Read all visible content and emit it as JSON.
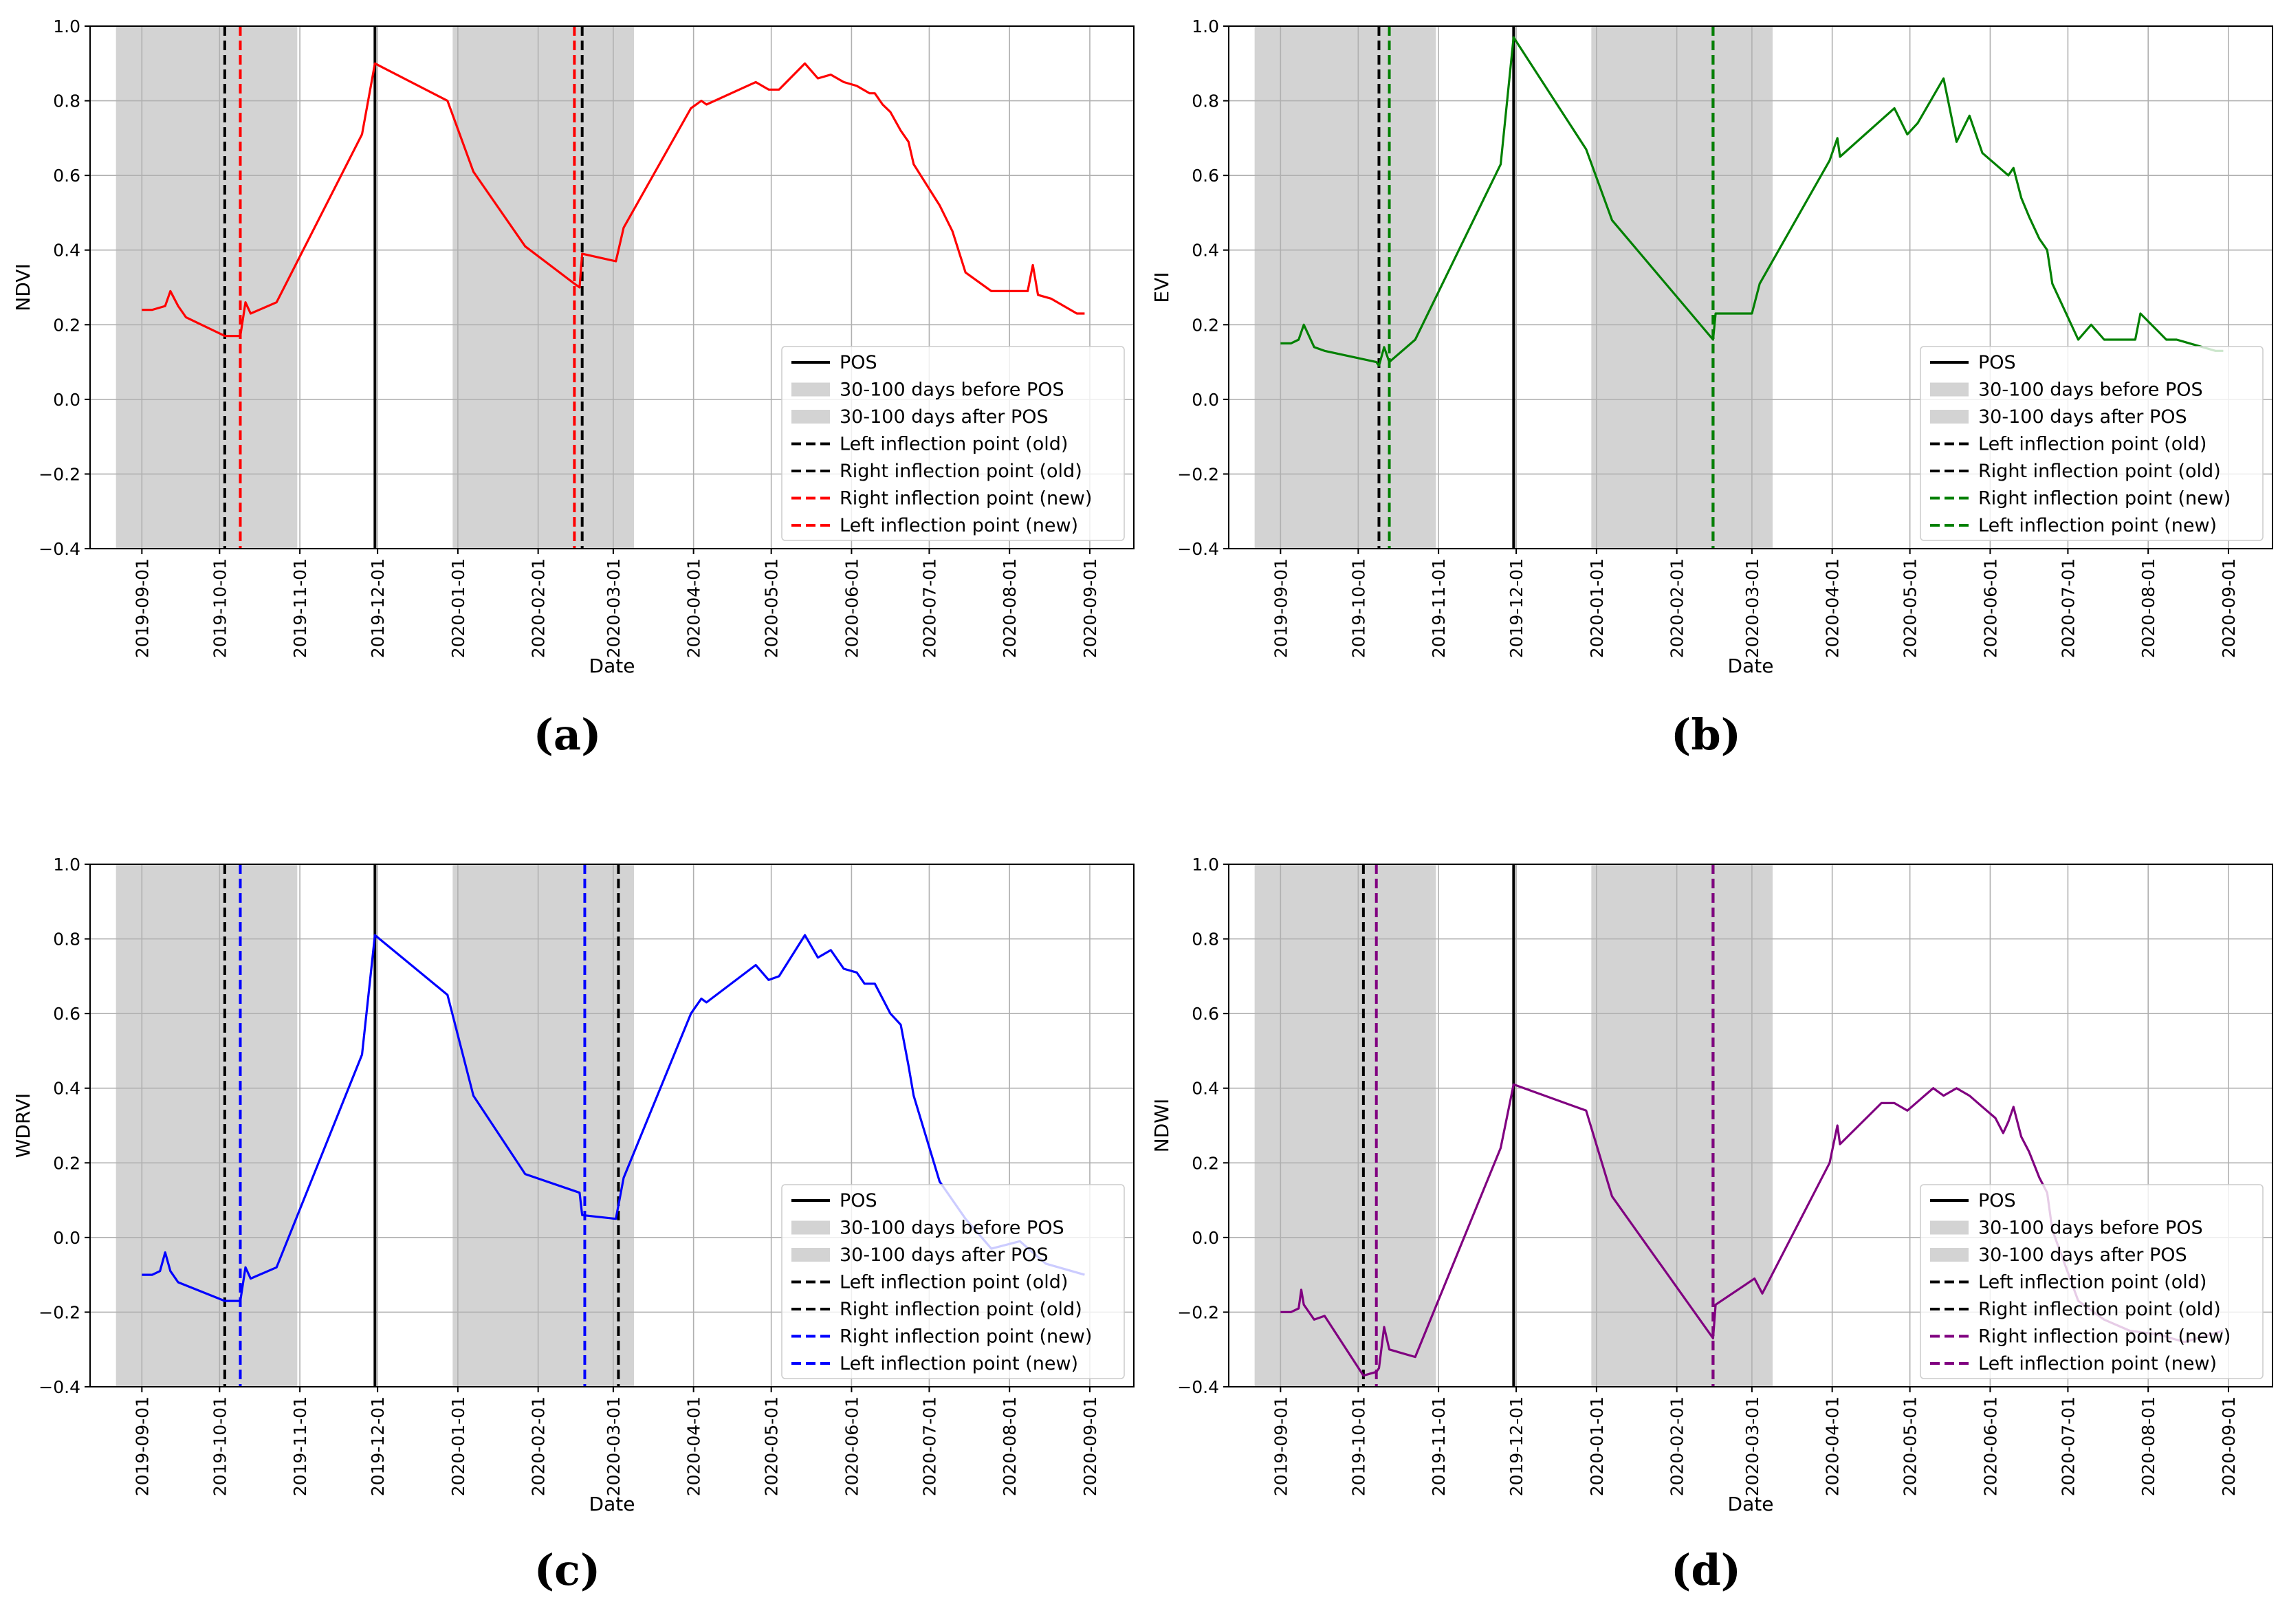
{
  "figure": {
    "xlabel": "Date"
  },
  "legend_labels": {
    "pos": "POS",
    "before": "30-100 days before POS",
    "after": "30-100 days after POS",
    "left_old": "Left inflection point (old)",
    "right_old": "Right inflection point (old)",
    "right_new": "Right inflection point (new)",
    "left_new": "Left inflection point (new)"
  },
  "chart_data": [
    {
      "type": "line",
      "caption": "(a)",
      "ylabel": "NDVI",
      "xlabel": "Date",
      "color": "#ff0000",
      "legend_position": "lower right",
      "x_ticks": [
        "2019-09-01",
        "2019-10-01",
        "2019-11-01",
        "2019-12-01",
        "2020-01-01",
        "2020-02-01",
        "2020-03-01",
        "2020-04-01",
        "2020-05-01",
        "2020-06-01",
        "2020-07-01",
        "2020-08-01",
        "2020-09-01"
      ],
      "y_ticks": [
        "1.0",
        "0.8",
        "0.6",
        "0.4",
        "0.2",
        "0.0",
        "−0.2",
        "−0.4"
      ],
      "ylim": [
        -0.4,
        1.0
      ],
      "xlim": [
        "2019-08-12",
        "2020-09-18"
      ],
      "grid": true,
      "pos_date": "2019-11-30",
      "shaded_before": [
        "2019-08-22",
        "2019-10-31"
      ],
      "shaded_after": [
        "2019-12-30",
        "2020-03-09"
      ],
      "left_old": "2019-10-03",
      "right_old": "2020-02-18",
      "right_new": "2020-02-15",
      "left_new": "2019-10-09",
      "series": {
        "name": "NDVI",
        "x": [
          "2019-09-01",
          "2019-09-05",
          "2019-09-10",
          "2019-09-12",
          "2019-09-15",
          "2019-09-18",
          "2019-10-03",
          "2019-10-08",
          "2019-10-09",
          "2019-10-11",
          "2019-10-13",
          "2019-10-23",
          "2019-11-25",
          "2019-11-30",
          "2019-12-28",
          "2020-01-07",
          "2020-01-27",
          "2020-02-15",
          "2020-02-17",
          "2020-02-18",
          "2020-03-02",
          "2020-03-05",
          "2020-03-31",
          "2020-04-04",
          "2020-04-06",
          "2020-04-25",
          "2020-04-30",
          "2020-05-04",
          "2020-05-14",
          "2020-05-19",
          "2020-05-24",
          "2020-05-29",
          "2020-06-03",
          "2020-06-08",
          "2020-06-10",
          "2020-06-13",
          "2020-06-16",
          "2020-06-20",
          "2020-06-23",
          "2020-06-25",
          "2020-07-05",
          "2020-07-10",
          "2020-07-15",
          "2020-07-25",
          "2020-07-27",
          "2020-07-29",
          "2020-08-08",
          "2020-08-10",
          "2020-08-12",
          "2020-08-17",
          "2020-08-27",
          "2020-08-30"
        ],
        "y": [
          0.24,
          0.24,
          0.25,
          0.29,
          0.25,
          0.22,
          0.17,
          0.17,
          0.17,
          0.26,
          0.23,
          0.26,
          0.71,
          0.9,
          0.8,
          0.61,
          0.41,
          0.31,
          0.3,
          0.39,
          0.37,
          0.46,
          0.78,
          0.8,
          0.79,
          0.85,
          0.83,
          0.83,
          0.9,
          0.86,
          0.87,
          0.85,
          0.84,
          0.82,
          0.82,
          0.79,
          0.77,
          0.72,
          0.69,
          0.63,
          0.52,
          0.45,
          0.34,
          0.29,
          0.29,
          0.29,
          0.29,
          0.36,
          0.28,
          0.27,
          0.23,
          0.23
        ]
      }
    },
    {
      "type": "line",
      "caption": "(b)",
      "ylabel": "EVI",
      "xlabel": "Date",
      "color": "#008000",
      "legend_position": "lower right",
      "x_ticks": [
        "2019-09-01",
        "2019-10-01",
        "2019-11-01",
        "2019-12-01",
        "2020-01-01",
        "2020-02-01",
        "2020-03-01",
        "2020-04-01",
        "2020-05-01",
        "2020-06-01",
        "2020-07-01",
        "2020-08-01",
        "2020-09-01"
      ],
      "y_ticks": [
        "1.0",
        "0.8",
        "0.6",
        "0.4",
        "0.2",
        "0.0",
        "−0.2",
        "−0.4"
      ],
      "ylim": [
        -0.4,
        1.0
      ],
      "xlim": [
        "2019-08-12",
        "2020-09-18"
      ],
      "grid": true,
      "pos_date": "2019-11-30",
      "shaded_before": [
        "2019-08-22",
        "2019-10-31"
      ],
      "shaded_after": [
        "2019-12-30",
        "2020-03-09"
      ],
      "left_old": "2019-10-09",
      "right_old": "2020-02-15",
      "right_new": "2020-02-15",
      "left_new": "2019-10-13",
      "series": {
        "name": "EVI",
        "x": [
          "2019-09-01",
          "2019-09-05",
          "2019-09-08",
          "2019-09-10",
          "2019-09-14",
          "2019-09-18",
          "2019-10-08",
          "2019-10-09",
          "2019-10-11",
          "2019-10-13",
          "2019-10-23",
          "2019-11-25",
          "2019-11-30",
          "2019-12-28",
          "2020-01-07",
          "2020-02-15",
          "2020-02-16",
          "2020-03-01",
          "2020-03-04",
          "2020-03-31",
          "2020-04-03",
          "2020-04-04",
          "2020-04-25",
          "2020-04-30",
          "2020-05-04",
          "2020-05-14",
          "2020-05-19",
          "2020-05-24",
          "2020-05-29",
          "2020-06-08",
          "2020-06-10",
          "2020-06-13",
          "2020-06-16",
          "2020-06-20",
          "2020-06-23",
          "2020-06-25",
          "2020-07-05",
          "2020-07-10",
          "2020-07-15",
          "2020-07-25",
          "2020-07-27",
          "2020-07-29",
          "2020-08-08",
          "2020-08-10",
          "2020-08-12",
          "2020-08-17",
          "2020-08-27",
          "2020-08-30"
        ],
        "y": [
          0.15,
          0.15,
          0.16,
          0.2,
          0.14,
          0.13,
          0.1,
          0.09,
          0.14,
          0.1,
          0.16,
          0.63,
          0.97,
          0.67,
          0.48,
          0.16,
          0.23,
          0.23,
          0.31,
          0.64,
          0.7,
          0.65,
          0.78,
          0.71,
          0.74,
          0.86,
          0.69,
          0.76,
          0.66,
          0.6,
          0.62,
          0.54,
          0.49,
          0.43,
          0.4,
          0.31,
          0.16,
          0.2,
          0.16,
          0.16,
          0.16,
          0.23,
          0.16,
          0.16,
          0.16,
          0.15,
          0.13,
          0.13
        ]
      }
    },
    {
      "type": "line",
      "caption": "(c)",
      "ylabel": "WDRVI",
      "xlabel": "Date",
      "color": "#0000ff",
      "legend_position": "lower right",
      "x_ticks": [
        "2019-09-01",
        "2019-10-01",
        "2019-11-01",
        "2019-12-01",
        "2020-01-01",
        "2020-02-01",
        "2020-03-01",
        "2020-04-01",
        "2020-05-01",
        "2020-06-01",
        "2020-07-01",
        "2020-08-01",
        "2020-09-01"
      ],
      "y_ticks": [
        "1.0",
        "0.8",
        "0.6",
        "0.4",
        "0.2",
        "0.0",
        "−0.2",
        "−0.4"
      ],
      "ylim": [
        -0.4,
        1.0
      ],
      "xlim": [
        "2019-08-12",
        "2020-09-18"
      ],
      "grid": true,
      "pos_date": "2019-11-30",
      "shaded_before": [
        "2019-08-22",
        "2019-10-31"
      ],
      "shaded_after": [
        "2019-12-30",
        "2020-03-09"
      ],
      "left_old": "2019-10-03",
      "right_old": "2020-03-03",
      "right_new": "2020-02-19",
      "left_new": "2019-10-09",
      "series": {
        "name": "WDRVI",
        "x": [
          "2019-09-01",
          "2019-09-05",
          "2019-09-08",
          "2019-09-10",
          "2019-09-12",
          "2019-09-15",
          "2019-10-03",
          "2019-10-08",
          "2019-10-09",
          "2019-10-11",
          "2019-10-13",
          "2019-10-23",
          "2019-11-25",
          "2019-11-30",
          "2019-12-28",
          "2020-01-07",
          "2020-01-27",
          "2020-02-17",
          "2020-02-18",
          "2020-03-02",
          "2020-03-05",
          "2020-03-31",
          "2020-04-04",
          "2020-04-06",
          "2020-04-25",
          "2020-04-30",
          "2020-05-04",
          "2020-05-14",
          "2020-05-19",
          "2020-05-24",
          "2020-05-29",
          "2020-06-03",
          "2020-06-06",
          "2020-06-08",
          "2020-06-10",
          "2020-06-13",
          "2020-06-16",
          "2020-06-20",
          "2020-06-23",
          "2020-06-25",
          "2020-07-05",
          "2020-07-15",
          "2020-07-25",
          "2020-08-05",
          "2020-08-15",
          "2020-08-30"
        ],
        "y": [
          -0.1,
          -0.1,
          -0.09,
          -0.04,
          -0.09,
          -0.12,
          -0.17,
          -0.17,
          -0.17,
          -0.08,
          -0.11,
          -0.08,
          0.49,
          0.81,
          0.65,
          0.38,
          0.17,
          0.12,
          0.06,
          0.05,
          0.16,
          0.6,
          0.64,
          0.63,
          0.73,
          0.69,
          0.7,
          0.81,
          0.75,
          0.77,
          0.72,
          0.71,
          0.68,
          0.68,
          0.68,
          0.64,
          0.6,
          0.57,
          0.46,
          0.38,
          0.15,
          0.05,
          -0.03,
          -0.01,
          -0.07,
          -0.1
        ]
      }
    },
    {
      "type": "line",
      "caption": "(d)",
      "ylabel": "NDWI",
      "xlabel": "Date",
      "color": "#800080",
      "legend_position": "lower right",
      "x_ticks": [
        "2019-09-01",
        "2019-10-01",
        "2019-11-01",
        "2019-12-01",
        "2020-01-01",
        "2020-02-01",
        "2020-03-01",
        "2020-04-01",
        "2020-05-01",
        "2020-06-01",
        "2020-07-01",
        "2020-08-01",
        "2020-09-01"
      ],
      "y_ticks": [
        "1.0",
        "0.8",
        "0.6",
        "0.4",
        "0.2",
        "0.0",
        "−0.2",
        "−0.4"
      ],
      "ylim": [
        -0.4,
        1.0
      ],
      "xlim": [
        "2019-08-12",
        "2020-09-18"
      ],
      "grid": true,
      "pos_date": "2019-11-30",
      "shaded_before": [
        "2019-08-22",
        "2019-10-31"
      ],
      "shaded_after": [
        "2019-12-30",
        "2020-03-09"
      ],
      "left_old": "2019-10-03",
      "right_old": "2020-02-15",
      "right_new": "2020-02-15",
      "left_new": "2019-10-08",
      "series": {
        "name": "NDWI",
        "x": [
          "2019-09-01",
          "2019-09-05",
          "2019-09-08",
          "2019-09-09",
          "2019-09-10",
          "2019-09-14",
          "2019-09-18",
          "2019-10-03",
          "2019-10-08",
          "2019-10-09",
          "2019-10-11",
          "2019-10-13",
          "2019-10-23",
          "2019-11-25",
          "2019-11-30",
          "2019-12-28",
          "2020-01-07",
          "2020-02-15",
          "2020-02-16",
          "2020-03-02",
          "2020-03-05",
          "2020-03-31",
          "2020-04-03",
          "2020-04-04",
          "2020-04-20",
          "2020-04-25",
          "2020-04-30",
          "2020-05-10",
          "2020-05-14",
          "2020-05-19",
          "2020-05-24",
          "2020-05-29",
          "2020-06-03",
          "2020-06-06",
          "2020-06-08",
          "2020-06-10",
          "2020-06-13",
          "2020-06-16",
          "2020-06-20",
          "2020-06-23",
          "2020-06-25",
          "2020-07-05",
          "2020-07-15",
          "2020-07-25",
          "2020-08-05",
          "2020-08-15",
          "2020-08-30"
        ],
        "y": [
          -0.2,
          -0.2,
          -0.19,
          -0.14,
          -0.18,
          -0.22,
          -0.21,
          -0.37,
          -0.36,
          -0.35,
          -0.24,
          -0.3,
          -0.32,
          0.24,
          0.41,
          0.34,
          0.11,
          -0.27,
          -0.18,
          -0.11,
          -0.15,
          0.2,
          0.3,
          0.25,
          0.36,
          0.36,
          0.34,
          0.4,
          0.38,
          0.4,
          0.38,
          0.35,
          0.32,
          0.28,
          0.31,
          0.35,
          0.27,
          0.23,
          0.16,
          0.12,
          0.02,
          -0.17,
          -0.22,
          -0.25,
          -0.26,
          -0.28,
          -0.25
        ]
      }
    }
  ]
}
